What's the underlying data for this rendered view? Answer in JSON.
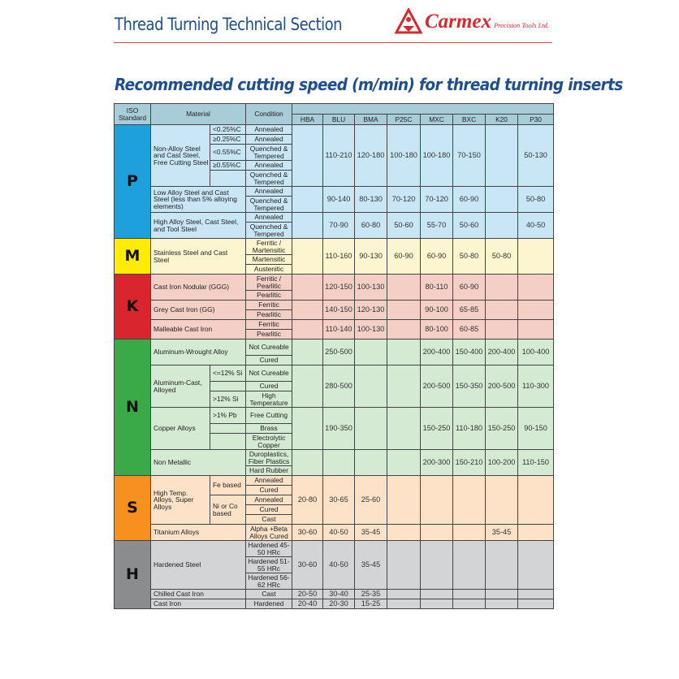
{
  "header": {
    "title": "Thread Turning Technical Section",
    "logo_name": "Carmex",
    "logo_sub": "Precision Tools Ltd."
  },
  "subtitle": "Recommended cutting speed (m/min) for thread turning inserts",
  "colors": {
    "title": "#1d4f91",
    "logo": "#d52a2f",
    "header_bg": "#a9cdd8"
  },
  "table": {
    "headers": {
      "iso": "ISO Standard",
      "material": "Material",
      "condition": "Condition"
    },
    "grades": [
      "HBA",
      "BLU",
      "BMA",
      "P25C",
      "MXC",
      "BXC",
      "K20",
      "P30"
    ],
    "groups": [
      {
        "iso": "P",
        "color": "#1ea0dc",
        "bg": "#c9e6f6",
        "materials": [
          {
            "name": "Non-Alloy Steel and Cast Steel, Free Cutting Steel",
            "subs": [
              {
                "label": "<0.25%C",
                "conditions": [
                  "Annealed"
                ]
              },
              {
                "label": "≥0.25%C",
                "conditions": [
                  "Annealed"
                ]
              },
              {
                "label": "<0.55%C",
                "conditions": [
                  "Quenched & Tempered"
                ]
              },
              {
                "label": "≥0.55%C",
                "conditions": [
                  "Annealed"
                ]
              },
              {
                "label": "",
                "conditions": [
                  "Quenched & Tempered"
                ]
              }
            ],
            "values": [
              "",
              "110-210",
              "120-180",
              "100-180",
              "100-180",
              "70-150",
              "",
              "50-130"
            ]
          },
          {
            "name": "Low Alloy Steel and Cast Steel (less than 5% alloying elements)",
            "conditions": [
              "Annealed",
              "Quenched & Tempered"
            ],
            "values": [
              "",
              "90-140",
              "80-130",
              "70-120",
              "70-120",
              "60-90",
              "",
              "50-80"
            ]
          },
          {
            "name": "High Alloy Steel, Cast Steel, and Tool Steel",
            "conditions": [
              "Annealed",
              "Quenched & Tempered"
            ],
            "values": [
              "",
              "70-90",
              "60-80",
              "50-60",
              "55-70",
              "50-60",
              "",
              "40-50"
            ]
          }
        ]
      },
      {
        "iso": "M",
        "color": "#ffec00",
        "bg": "#fdf5cf",
        "materials": [
          {
            "name": "Stainless Steel and Cast Steel",
            "conditions": [
              "Ferritic / Martensitic",
              "Martensitic",
              "Austenitic"
            ],
            "values": [
              "",
              "110-160",
              "90-130",
              "60-90",
              "60-90",
              "50-80",
              "50-80",
              ""
            ]
          }
        ]
      },
      {
        "iso": "K",
        "color": "#d9262e",
        "bg": "#f3cfc6",
        "materials": [
          {
            "name": "Cast Iron Nodular (GGG)",
            "conditions": [
              "Ferritic / Pearlitic",
              "Pearlitic"
            ],
            "values": [
              "",
              "120-150",
              "100-130",
              "",
              "80-110",
              "60-90",
              "",
              ""
            ]
          },
          {
            "name": "Grey Cast Iron (GG)",
            "conditions": [
              "Ferritic",
              "Pearlitic"
            ],
            "values": [
              "",
              "140-150",
              "120-130",
              "",
              "90-100",
              "65-85",
              "",
              ""
            ]
          },
          {
            "name": "Malleable Cast Iron",
            "conditions": [
              "Ferritic",
              "Pearlitic"
            ],
            "values": [
              "",
              "110-140",
              "100-130",
              "",
              "80-100",
              "60-85",
              "",
              ""
            ]
          }
        ]
      },
      {
        "iso": "N",
        "color": "#3aaa48",
        "bg": "#d5ead3",
        "materials": [
          {
            "name": "Aluminum-Wrought Alloy",
            "conditions": [
              "Not Cureable",
              "Cured"
            ],
            "values": [
              "",
              "250-500",
              "",
              "",
              "200-400",
              "150-400",
              "200-400",
              "100-400"
            ]
          },
          {
            "name": "Aluminum-Cast, Alloyed",
            "subs": [
              {
                "label": "<=12% Si",
                "conditions": [
                  "Not Cureable"
                ]
              },
              {
                "label": "",
                "conditions": [
                  "Cured"
                ]
              },
              {
                "label": ">12% Si",
                "conditions": [
                  "High Temperature"
                ]
              }
            ],
            "values": [
              "",
              "280-500",
              "",
              "",
              "200-500",
              "150-350",
              "200-500",
              "110-300"
            ]
          },
          {
            "name": "Copper Alloys",
            "subs": [
              {
                "label": ">1% Pb",
                "conditions": [
                  "Free Cutting"
                ]
              },
              {
                "label": "",
                "conditions": [
                  "Brass"
                ]
              },
              {
                "label": "",
                "conditions": [
                  "Electrolytic Copper"
                ]
              }
            ],
            "values": [
              "",
              "190-350",
              "",
              "",
              "150-250",
              "110-180",
              "150-250",
              "90-150"
            ]
          },
          {
            "name": "Non Metallic",
            "conditions": [
              "Duroplastics, Fiber Plastics",
              "Hard Rubber"
            ],
            "values": [
              "",
              "",
              "",
              "",
              "200-300",
              "150-210",
              "100-200",
              "110-150"
            ]
          }
        ]
      },
      {
        "iso": "S",
        "color": "#f7901e",
        "bg": "#fde2c8",
        "materials": [
          {
            "name": "High Temp. Alloys, Super Alloys",
            "subs": [
              {
                "label": "Fe based",
                "conditions": [
                  "Annealed",
                  "Cured"
                ]
              },
              {
                "label": "Ni or Co based",
                "conditions": [
                  "Annealed",
                  "Cured",
                  "Cast"
                ]
              }
            ],
            "values": [
              "20-80",
              "30-65",
              "25-60",
              "",
              "",
              "",
              "",
              ""
            ]
          },
          {
            "name": "Titanium Alloys",
            "conditions": [
              "Alpha +Beta Alloys Cured"
            ],
            "values": [
              "30-60",
              "40-50",
              "35-45",
              "",
              "",
              "",
              "35-45",
              ""
            ]
          }
        ]
      },
      {
        "iso": "H",
        "color": "#8a8c8e",
        "bg": "#d3d4d6",
        "materials": [
          {
            "name": "Hardened Steel",
            "conditions": [
              "Hardened 45-50 HRc",
              "Hardened 51-55 HRc",
              "Hardened 56-62 HRc"
            ],
            "values": [
              "30-60",
              "40-50",
              "35-45",
              "",
              "",
              "",
              "",
              ""
            ]
          },
          {
            "name": "Chilled Cast Iron",
            "conditions": [
              "Cast"
            ],
            "values": [
              "20-50",
              "30-40",
              "25-35",
              "",
              "",
              "",
              "",
              ""
            ]
          },
          {
            "name": "Cast Iron",
            "conditions": [
              "Hardened"
            ],
            "values": [
              "20-40",
              "20-30",
              "15-25",
              "",
              "",
              "",
              "",
              ""
            ]
          }
        ]
      }
    ]
  }
}
